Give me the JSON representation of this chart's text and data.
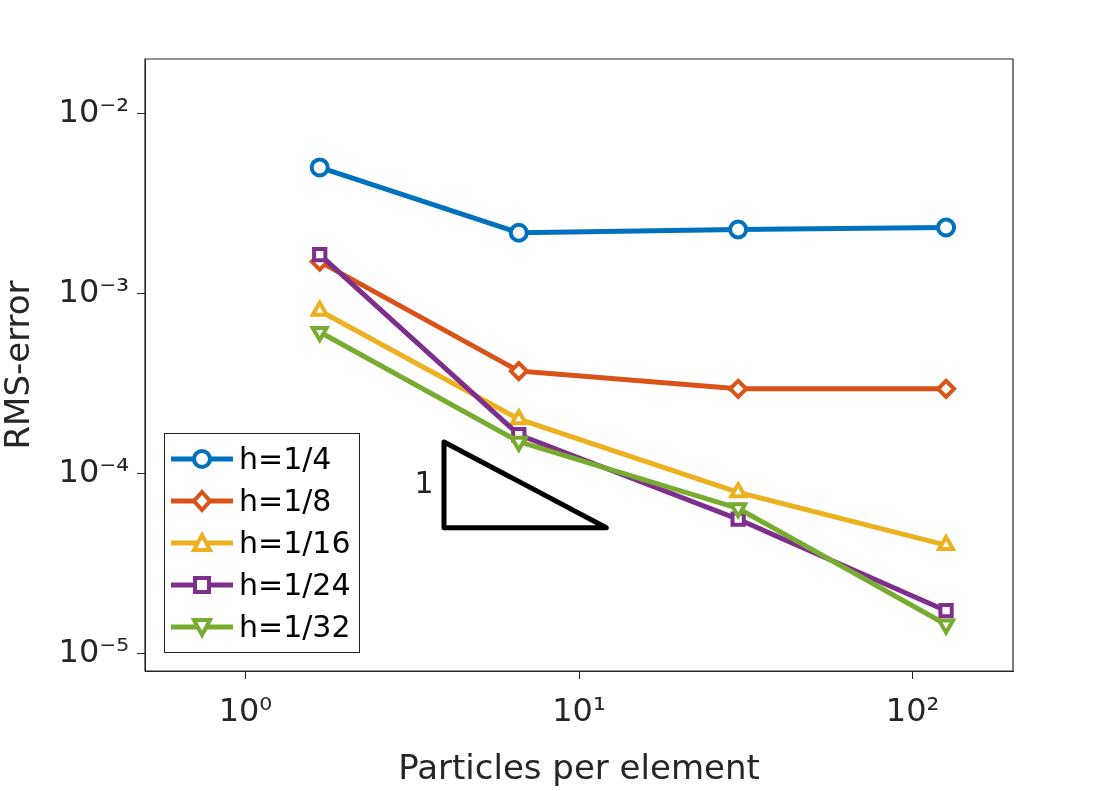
{
  "chart_data": {
    "type": "line",
    "xlabel": "Particles per element",
    "ylabel": "RMS-error",
    "x": [
      1.67,
      6.6,
      30,
      126
    ],
    "series": [
      {
        "name": "h=1/4",
        "color": "#0072bd",
        "marker": "circle",
        "values": [
          0.005,
          0.00217,
          0.00226,
          0.00232
        ]
      },
      {
        "name": "h=1/8",
        "color": "#d95319",
        "marker": "diamond",
        "values": [
          0.0015,
          0.00037,
          0.000295,
          0.000295
        ]
      },
      {
        "name": "h=1/16",
        "color": "#edb120",
        "marker": "triangle",
        "values": [
          0.0008,
          0.0002,
          7.85e-05,
          4e-05
        ]
      },
      {
        "name": "h=1/24",
        "color": "#7e2f8e",
        "marker": "square",
        "values": [
          0.00164,
          0.000164,
          5.57e-05,
          1.73e-05
        ]
      },
      {
        "name": "h=1/32",
        "color": "#77ac30",
        "marker": "triangle-down",
        "values": [
          0.00061,
          0.00015,
          6.4e-05,
          1.45e-05
        ]
      }
    ],
    "log": "xy",
    "xlim": [
      0.5,
      200
    ],
    "xticks": [
      {
        "value": 1,
        "label": "10⁰"
      },
      {
        "value": 10,
        "label": "10¹"
      },
      {
        "value": 100,
        "label": "10²"
      }
    ],
    "ylim": [
      8e-06,
      0.02
    ],
    "yticks": [
      {
        "value": 1e-05,
        "label": "10⁻⁵"
      },
      {
        "value": 0.0001,
        "label": "10⁻⁴"
      },
      {
        "value": 0.001,
        "label": "10⁻³"
      },
      {
        "value": 0.01,
        "label": "10⁻²"
      }
    ],
    "grid": false,
    "legend": "bottom left",
    "line_style": "solid",
    "annotations": [
      "1"
    ]
  }
}
